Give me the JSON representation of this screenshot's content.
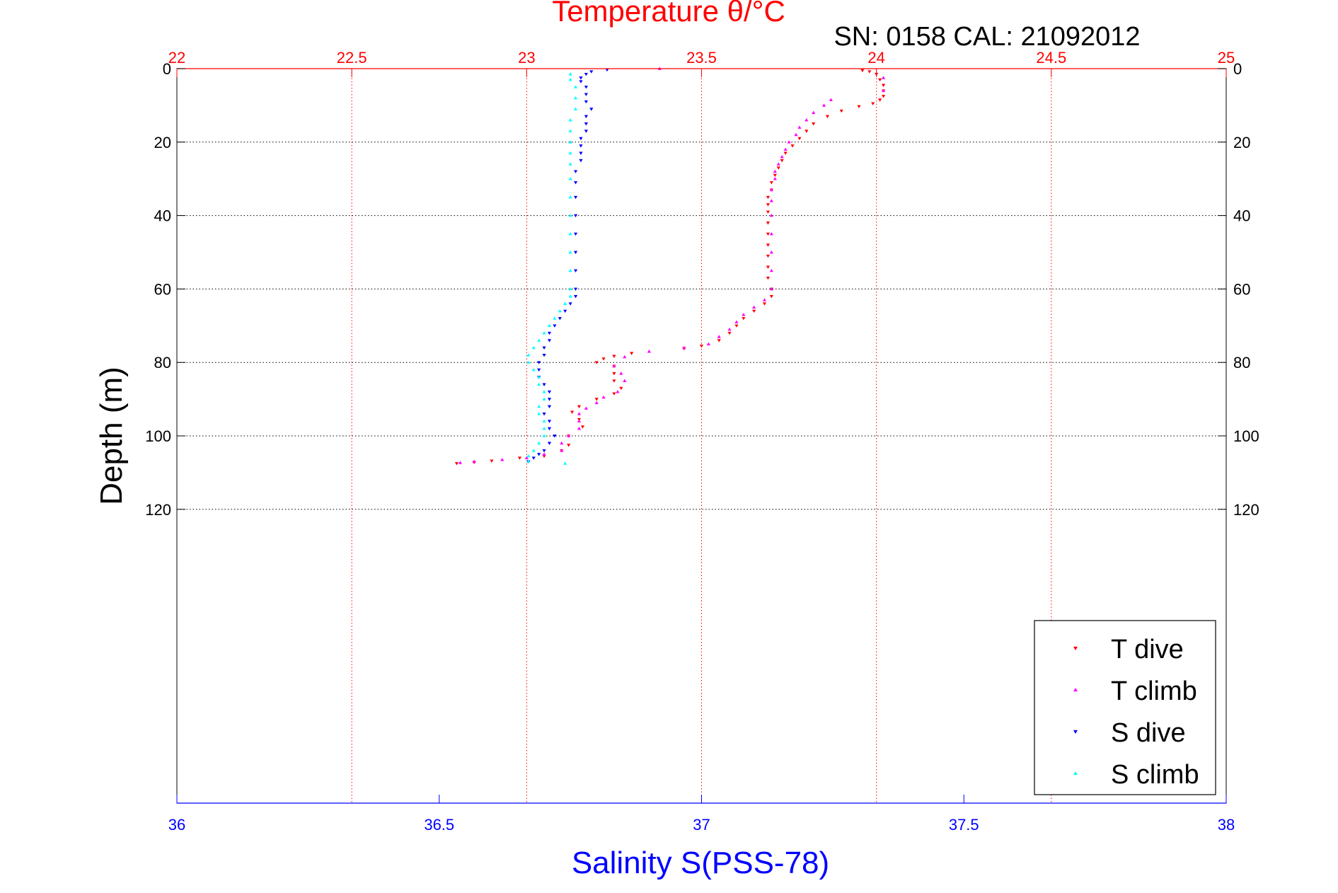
{
  "colors": {
    "temperature_axis": "#ff0000",
    "salinity_axis": "#0000ff",
    "t_dive": "#ff0000",
    "t_climb": "#ff00ff",
    "s_dive": "#0000ff",
    "s_climb": "#00ffff",
    "grid_depth": "#000000",
    "grid_temp": "#ff0000",
    "legend_border": "#000000"
  },
  "chart_data": {
    "type": "scatter",
    "title": "Temperature θ/°C",
    "subtitle": "SN: 0158  CAL: 21092012",
    "xlabel": "Salinity S(PSS-78)",
    "ylabel": "Depth (m)",
    "temperature_axis": {
      "range": [
        22,
        25
      ],
      "ticks": [
        22,
        22.5,
        23,
        23.5,
        24,
        24.5,
        25
      ],
      "tick_labels": [
        "22",
        "22.5",
        "23",
        "23.5",
        "24",
        "24.5",
        "25"
      ]
    },
    "salinity_axis": {
      "range": [
        36,
        38
      ],
      "ticks": [
        36,
        36.5,
        37,
        37.5,
        38
      ],
      "tick_labels": [
        "36",
        "36.5",
        "37",
        "37.5",
        "38"
      ]
    },
    "depth_axis": {
      "range": [
        0,
        200
      ],
      "reversed": true,
      "ticks": [
        0,
        20,
        40,
        60,
        80,
        100,
        120
      ],
      "tick_labels": [
        "0",
        "20",
        "40",
        "60",
        "80",
        "100",
        "120"
      ]
    },
    "grid": true,
    "legend": {
      "placement": "bottom-right",
      "entries": [
        "T dive",
        "T climb",
        "S dive",
        "S climb"
      ]
    },
    "series": [
      {
        "name": "T dive",
        "axis": "temperature",
        "marker": "triangle-down",
        "points": [
          [
            23.96,
            0.5
          ],
          [
            23.98,
            0.8
          ],
          [
            24.0,
            1.5
          ],
          [
            24.01,
            3
          ],
          [
            24.02,
            4.5
          ],
          [
            24.02,
            6
          ],
          [
            24.02,
            7.5
          ],
          [
            24.01,
            8.5
          ],
          [
            23.99,
            9.5
          ],
          [
            23.95,
            10.3
          ],
          [
            23.9,
            11.5
          ],
          [
            23.86,
            13
          ],
          [
            23.82,
            15
          ],
          [
            23.8,
            17
          ],
          [
            23.78,
            19
          ],
          [
            23.76,
            21
          ],
          [
            23.74,
            23
          ],
          [
            23.73,
            25
          ],
          [
            23.72,
            27
          ],
          [
            23.71,
            29
          ],
          [
            23.7,
            31
          ],
          [
            23.7,
            33
          ],
          [
            23.69,
            35
          ],
          [
            23.69,
            37
          ],
          [
            23.69,
            39
          ],
          [
            23.69,
            42
          ],
          [
            23.69,
            45
          ],
          [
            23.69,
            48
          ],
          [
            23.69,
            51
          ],
          [
            23.69,
            54
          ],
          [
            23.69,
            57
          ],
          [
            23.7,
            60
          ],
          [
            23.7,
            62
          ],
          [
            23.68,
            64
          ],
          [
            23.65,
            66
          ],
          [
            23.62,
            68
          ],
          [
            23.6,
            70
          ],
          [
            23.58,
            72
          ],
          [
            23.55,
            74
          ],
          [
            23.5,
            75.5
          ],
          [
            23.45,
            76.2
          ],
          [
            23.3,
            77.5
          ],
          [
            23.25,
            78.3
          ],
          [
            23.22,
            79
          ],
          [
            23.2,
            80
          ],
          [
            23.25,
            81
          ],
          [
            23.25,
            83
          ],
          [
            23.25,
            85
          ],
          [
            23.27,
            87
          ],
          [
            23.25,
            88.5
          ],
          [
            23.2,
            90
          ],
          [
            23.15,
            92
          ],
          [
            23.13,
            93.5
          ],
          [
            23.15,
            95.5
          ],
          [
            23.16,
            97.5
          ],
          [
            23.12,
            100
          ],
          [
            23.12,
            102.5
          ],
          [
            23.1,
            104
          ],
          [
            23.05,
            105.5
          ],
          [
            22.98,
            106
          ],
          [
            22.9,
            106.8
          ],
          [
            22.85,
            107.2
          ],
          [
            22.8,
            107.5
          ]
        ]
      },
      {
        "name": "T climb",
        "axis": "temperature",
        "marker": "triangle-up",
        "points": [
          [
            23.38,
            0
          ],
          [
            24.02,
            2.5
          ],
          [
            24.02,
            6
          ],
          [
            23.87,
            8.5
          ],
          [
            23.85,
            10
          ],
          [
            23.82,
            12
          ],
          [
            23.8,
            14
          ],
          [
            23.78,
            16
          ],
          [
            23.77,
            18
          ],
          [
            23.75,
            20
          ],
          [
            23.74,
            22
          ],
          [
            23.73,
            24
          ],
          [
            23.72,
            26
          ],
          [
            23.71,
            28
          ],
          [
            23.71,
            30
          ],
          [
            23.7,
            33
          ],
          [
            23.7,
            36
          ],
          [
            23.7,
            40
          ],
          [
            23.7,
            45
          ],
          [
            23.7,
            50
          ],
          [
            23.7,
            55
          ],
          [
            23.7,
            60
          ],
          [
            23.68,
            63
          ],
          [
            23.65,
            65
          ],
          [
            23.62,
            67
          ],
          [
            23.6,
            69
          ],
          [
            23.58,
            71
          ],
          [
            23.55,
            73
          ],
          [
            23.52,
            75
          ],
          [
            23.45,
            76
          ],
          [
            23.35,
            77
          ],
          [
            23.28,
            78.5
          ],
          [
            23.25,
            81
          ],
          [
            23.27,
            83
          ],
          [
            23.28,
            85
          ],
          [
            23.26,
            88
          ],
          [
            23.22,
            89.5
          ],
          [
            23.2,
            91
          ],
          [
            23.17,
            92.5
          ],
          [
            23.15,
            94
          ],
          [
            23.15,
            96
          ],
          [
            23.15,
            98
          ],
          [
            23.12,
            100
          ],
          [
            23.1,
            102
          ],
          [
            23.1,
            104
          ],
          [
            23.05,
            105
          ],
          [
            23.0,
            106
          ],
          [
            22.93,
            106.5
          ],
          [
            22.85,
            107
          ],
          [
            22.81,
            107.3
          ]
        ]
      },
      {
        "name": "S dive",
        "axis": "salinity",
        "marker": "triangle-down",
        "points": [
          [
            36.82,
            0.3
          ],
          [
            36.79,
            0.8
          ],
          [
            36.78,
            1.5
          ],
          [
            36.77,
            2.5
          ],
          [
            36.77,
            3.5
          ],
          [
            36.78,
            5
          ],
          [
            36.78,
            7
          ],
          [
            36.78,
            9
          ],
          [
            36.79,
            11
          ],
          [
            36.78,
            13
          ],
          [
            36.78,
            15
          ],
          [
            36.78,
            17
          ],
          [
            36.77,
            19
          ],
          [
            36.77,
            21
          ],
          [
            36.77,
            23
          ],
          [
            36.77,
            25
          ],
          [
            36.76,
            28
          ],
          [
            36.76,
            31
          ],
          [
            36.76,
            35
          ],
          [
            36.76,
            40
          ],
          [
            36.76,
            45
          ],
          [
            36.76,
            50
          ],
          [
            36.76,
            55
          ],
          [
            36.76,
            60
          ],
          [
            36.76,
            62
          ],
          [
            36.75,
            64
          ],
          [
            36.74,
            66
          ],
          [
            36.73,
            68
          ],
          [
            36.72,
            70
          ],
          [
            36.71,
            72
          ],
          [
            36.71,
            74
          ],
          [
            36.7,
            76
          ],
          [
            36.7,
            78
          ],
          [
            36.69,
            80
          ],
          [
            36.69,
            82
          ],
          [
            36.69,
            84
          ],
          [
            36.7,
            86
          ],
          [
            36.71,
            88
          ],
          [
            36.71,
            90
          ],
          [
            36.71,
            92
          ],
          [
            36.7,
            94
          ],
          [
            36.71,
            96
          ],
          [
            36.71,
            98
          ],
          [
            36.72,
            100
          ],
          [
            36.71,
            102
          ],
          [
            36.7,
            104
          ],
          [
            36.69,
            105
          ],
          [
            36.68,
            106
          ],
          [
            36.67,
            107
          ]
        ]
      },
      {
        "name": "S climb",
        "axis": "salinity",
        "marker": "triangle-up",
        "points": [
          [
            36.75,
            1.5
          ],
          [
            36.75,
            3
          ],
          [
            36.76,
            5
          ],
          [
            36.76,
            8
          ],
          [
            36.76,
            11
          ],
          [
            36.75,
            14
          ],
          [
            36.75,
            17
          ],
          [
            36.75,
            20
          ],
          [
            36.75,
            23
          ],
          [
            36.75,
            26
          ],
          [
            36.75,
            30
          ],
          [
            36.75,
            35
          ],
          [
            36.75,
            40
          ],
          [
            36.75,
            45
          ],
          [
            36.75,
            50
          ],
          [
            36.75,
            55
          ],
          [
            36.75,
            60
          ],
          [
            36.75,
            62
          ],
          [
            36.74,
            64
          ],
          [
            36.73,
            66
          ],
          [
            36.72,
            68
          ],
          [
            36.71,
            70
          ],
          [
            36.7,
            72
          ],
          [
            36.69,
            74
          ],
          [
            36.68,
            76
          ],
          [
            36.67,
            78
          ],
          [
            36.67,
            80
          ],
          [
            36.68,
            82
          ],
          [
            36.69,
            84
          ],
          [
            36.69,
            86
          ],
          [
            36.7,
            88
          ],
          [
            36.7,
            90
          ],
          [
            36.69,
            92
          ],
          [
            36.69,
            94
          ],
          [
            36.7,
            96
          ],
          [
            36.7,
            98
          ],
          [
            36.7,
            100
          ],
          [
            36.69,
            102
          ],
          [
            36.68,
            104
          ],
          [
            36.67,
            105.5
          ],
          [
            36.67,
            107
          ],
          [
            36.74,
            107.5
          ]
        ]
      }
    ]
  }
}
